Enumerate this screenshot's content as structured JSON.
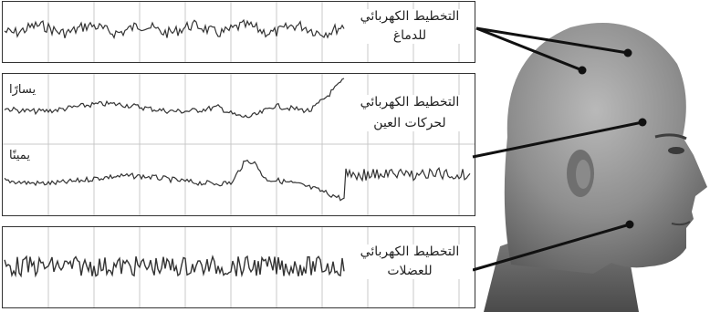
{
  "figure": {
    "panels": [
      {
        "id": "eeg",
        "label_line1": "التخطيط الكهربائي",
        "label_line2": "للدماغ"
      },
      {
        "id": "eog",
        "label_line1": "التخطيط الكهربائي",
        "label_line2": "لحركات العين",
        "trace_left_label": "يسارًا",
        "trace_right_label": "يمينًا"
      },
      {
        "id": "emg",
        "label_line1": "التخطيط الكهربائي",
        "label_line2": "للعضلات"
      }
    ]
  }
}
